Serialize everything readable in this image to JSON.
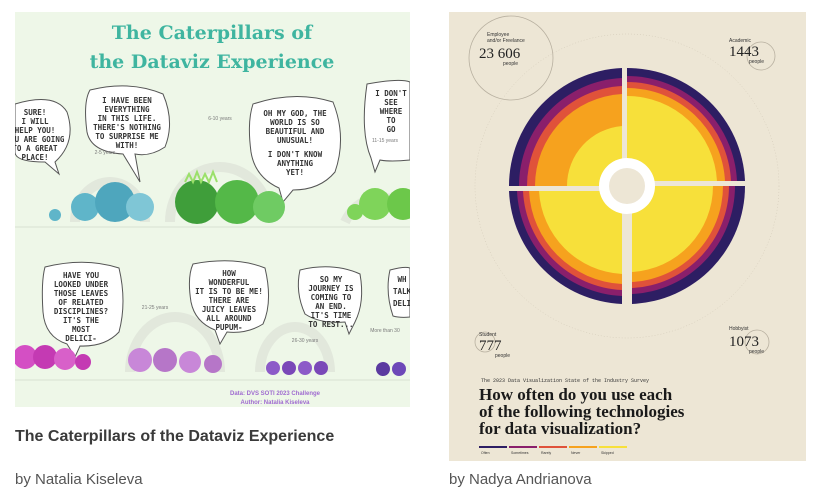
{
  "cards": [
    {
      "title": "The Caterpillars of the Dataviz Experience",
      "byline": "by Natalia Kiseleva",
      "image": {
        "heading_line1": "The Caterpillars of",
        "heading_line2": "the Dataviz Experience",
        "bubbles": [
          [
            "SURE!",
            "I WILL",
            "HELP YOU!",
            "YOU ARE GOING",
            "TO A GREAT",
            "PLACE!"
          ],
          [
            "I HAVE BEEN",
            "EVERYTHING",
            "IN THIS LIFE.",
            "THERE'S NOTHING",
            "TO SURPRISE ME",
            "WITH!"
          ],
          [
            "OH MY GOD, THE",
            "WORLD IS SO",
            "BEAUTIFUL AND",
            "UNUSUAL!",
            "I DON'T KNOW",
            "ANYTHING",
            "YET!"
          ],
          [
            "I DON'T",
            "SEE",
            "WHERE",
            "TO",
            "GO"
          ],
          [
            "HAVE YOU",
            "LOOKED UNDER",
            "THOSE LEAVES",
            "OF RELATED",
            "DISCIPLINES?",
            "IT'S THE",
            "MOST",
            "DELICI-",
            "OUS!"
          ],
          [
            "HOW",
            "WONDERFUL",
            "IT IS TO BE ME!",
            "THERE ARE",
            "JUICY LEAVES",
            "ALL AROUND",
            "PUPUM-",
            "PUM!"
          ],
          [
            "SO MY",
            "JOURNEY IS",
            "COMING TO",
            "AN END.",
            "IT'S TIME",
            "TO REST..."
          ],
          [
            "WH",
            "TALK",
            "DELI"
          ]
        ],
        "range_labels": [
          "2-5 years",
          "6-10 years",
          "11-15 years",
          "21-25 years",
          "26-30 years",
          "More than 30"
        ],
        "footer_line1": "Data: DVS SOTI 2023 Challenge",
        "footer_line2": "Author: Natalia Kiseleva"
      }
    },
    {
      "title": "",
      "byline": "by Nadya Andrianova",
      "image": {
        "corners": [
          {
            "label1": "Employee",
            "label2": "and/or Freelance",
            "value": "23 606",
            "unit": "people"
          },
          {
            "label1": "Academic",
            "label2": "",
            "value": "1443",
            "unit": "people"
          },
          {
            "label1": "Student",
            "label2": "",
            "value": "777",
            "unit": "people"
          },
          {
            "label1": "Hobbyist",
            "label2": "",
            "value": "1073",
            "unit": "people"
          }
        ],
        "survey_title": "The 2023 Data Visualization State of the Industry Survey",
        "question_lines": [
          "How often do you use each",
          "of the following technologies",
          "for data visualization?"
        ],
        "legend": [
          {
            "label": "Often",
            "color": "#2d1e63"
          },
          {
            "label": "Sometimes",
            "color": "#8a1f6b"
          },
          {
            "label": "Rarely",
            "color": "#e0523a"
          },
          {
            "label": "Never",
            "color": "#f6a21e"
          },
          {
            "label": "Skipped",
            "color": "#f7e03a"
          }
        ]
      }
    }
  ],
  "colors": {
    "palette_dark": "#2d1e63",
    "palette_magenta": "#8a1f6b",
    "palette_red": "#e0523a",
    "palette_orange": "#f6a21e",
    "palette_yellow": "#f7e03a",
    "caterpillar_blue": "#5fb5c9",
    "caterpillar_green": "#54b848",
    "caterpillar_purple": "#c35bd1"
  }
}
